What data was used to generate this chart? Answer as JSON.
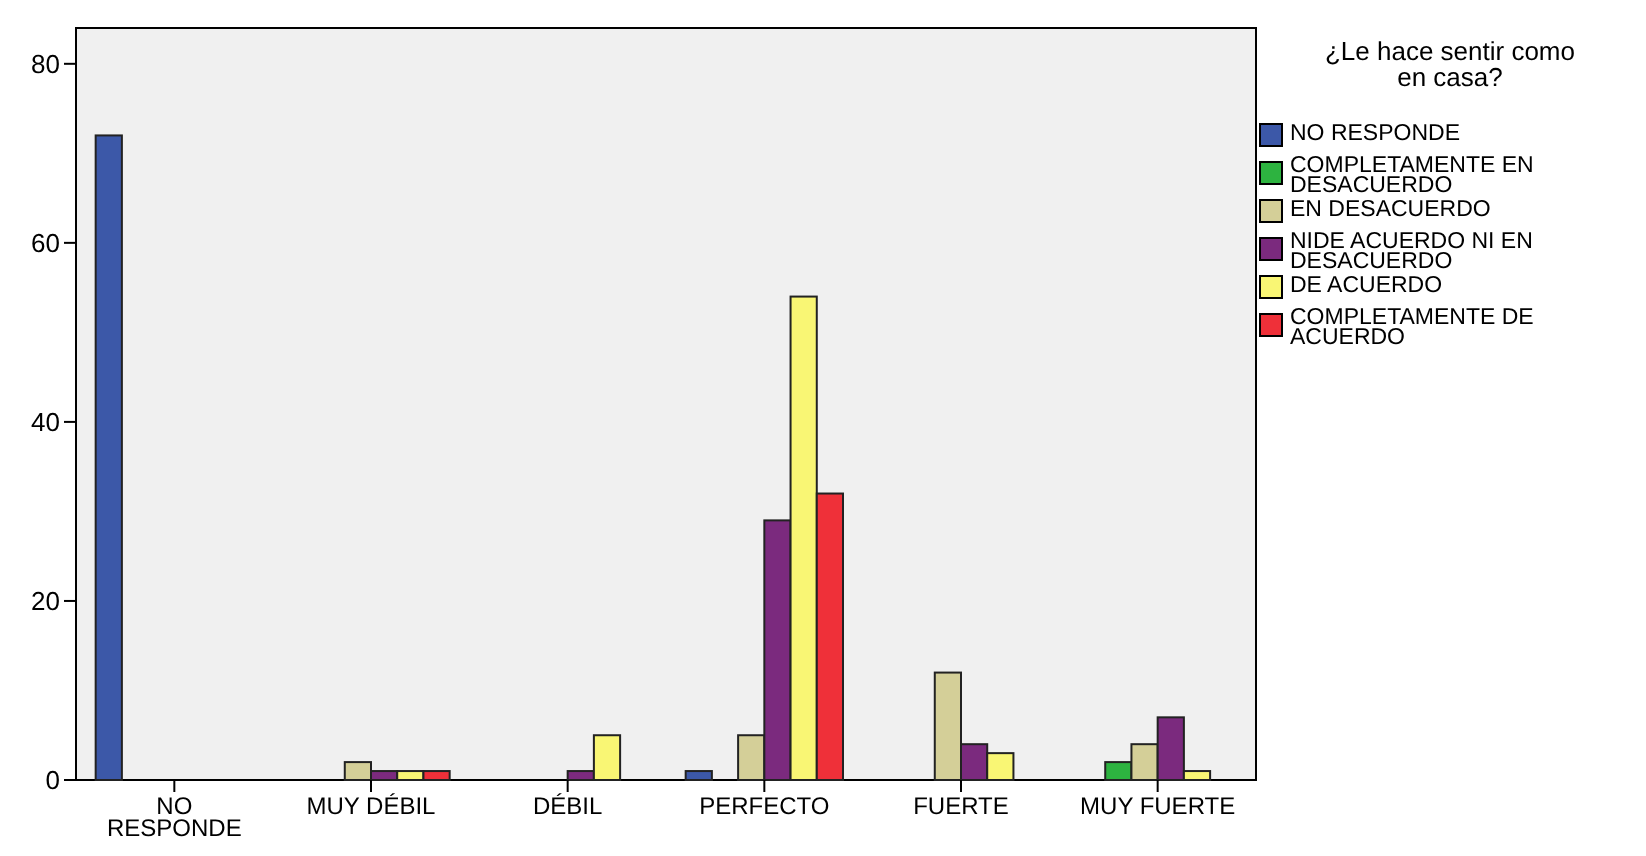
{
  "chart_data": {
    "type": "bar",
    "categories": [
      "NO RESPONDE",
      "MUY DÉBIL",
      "DÉBIL",
      "PERFECTO",
      "FUERTE",
      "MUY FUERTE"
    ],
    "legend_title": "¿Le hace sentir como en casa?",
    "legend": "right",
    "ylim": [
      0,
      84
    ],
    "yticks": [
      0,
      20,
      40,
      60,
      80
    ],
    "series": [
      {
        "name": "NO RESPONDE",
        "color": "#3c58a8",
        "values": [
          72,
          null,
          null,
          1,
          null,
          null
        ]
      },
      {
        "name": "COMPLETAMENTE EN DESACUERDO",
        "color": "#2db340",
        "values": [
          null,
          null,
          null,
          null,
          null,
          2
        ]
      },
      {
        "name": "EN DESACUERDO",
        "color": "#d4cf98",
        "values": [
          null,
          2,
          null,
          5,
          12,
          4
        ]
      },
      {
        "name": "NIDE ACUERDO NI EN DESACUERDO",
        "color": "#7b2a7e",
        "values": [
          null,
          1,
          1,
          29,
          4,
          7
        ]
      },
      {
        "name": "DE ACUERDO",
        "color": "#f9f674",
        "values": [
          null,
          1,
          5,
          54,
          3,
          1
        ]
      },
      {
        "name": "COMPLETAMENTE DE ACUERDO",
        "color": "#ef3039",
        "values": [
          null,
          1,
          null,
          32,
          null,
          null
        ]
      }
    ]
  }
}
